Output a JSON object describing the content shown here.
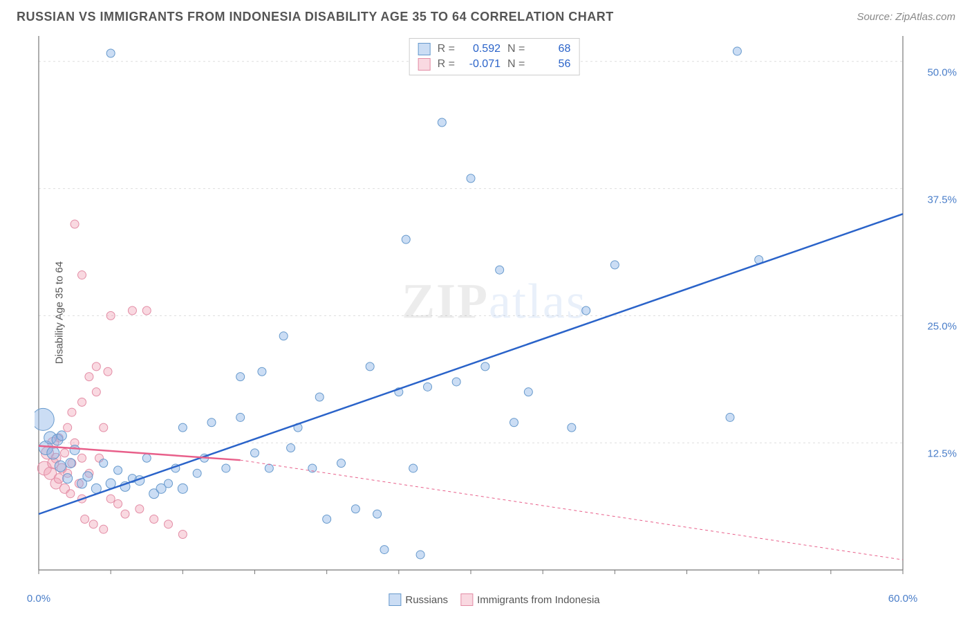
{
  "header": {
    "title": "RUSSIAN VS IMMIGRANTS FROM INDONESIA DISABILITY AGE 35 TO 64 CORRELATION CHART",
    "source": "Source: ZipAtlas.com"
  },
  "watermark": {
    "lead": "ZIP",
    "tail": "atlas"
  },
  "chart": {
    "type": "scatter",
    "ylabel": "Disability Age 35 to 64",
    "xlim": [
      0,
      60
    ],
    "ylim": [
      0,
      52.5
    ],
    "xticks": [
      0,
      60
    ],
    "xtick_labels": [
      "0.0%",
      "60.0%"
    ],
    "xticks_minor": [
      0,
      5,
      10,
      15,
      20,
      25,
      30,
      35,
      40,
      45,
      50,
      55,
      60
    ],
    "yticks": [
      12.5,
      25.0,
      37.5,
      50.0
    ],
    "ytick_labels": [
      "12.5%",
      "25.0%",
      "37.5%",
      "50.0%"
    ],
    "grid_color": "#dddddd",
    "axis_color": "#777777",
    "background_color": "#ffffff",
    "series": [
      {
        "name": "Russians",
        "marker_fill": "rgba(140,180,230,0.45)",
        "marker_stroke": "#6699cc",
        "line_color": "#2a63c9",
        "line_width": 2.5,
        "line_dash": "none",
        "r_stat": "0.592",
        "n_stat": "68",
        "trend": {
          "x1": 0,
          "y1": 5.5,
          "x2": 60,
          "y2": 35.0
        },
        "points": [
          {
            "x": 0.3,
            "y": 14.8,
            "r": 16
          },
          {
            "x": 0.5,
            "y": 12.0,
            "r": 10
          },
          {
            "x": 0.8,
            "y": 13.0,
            "r": 9
          },
          {
            "x": 1.0,
            "y": 11.5,
            "r": 9
          },
          {
            "x": 1.3,
            "y": 12.8,
            "r": 8
          },
          {
            "x": 1.5,
            "y": 10.2,
            "r": 8
          },
          {
            "x": 1.6,
            "y": 13.2,
            "r": 7
          },
          {
            "x": 2.0,
            "y": 9.0,
            "r": 7
          },
          {
            "x": 2.2,
            "y": 10.5,
            "r": 7
          },
          {
            "x": 2.5,
            "y": 11.8,
            "r": 7
          },
          {
            "x": 3.0,
            "y": 8.5,
            "r": 7
          },
          {
            "x": 3.4,
            "y": 9.2,
            "r": 7
          },
          {
            "x": 4.0,
            "y": 8.0,
            "r": 7
          },
          {
            "x": 4.5,
            "y": 10.5,
            "r": 6
          },
          {
            "x": 5.0,
            "y": 8.5,
            "r": 7
          },
          {
            "x": 5.0,
            "y": 50.8,
            "r": 6
          },
          {
            "x": 5.5,
            "y": 9.8,
            "r": 6
          },
          {
            "x": 6.0,
            "y": 8.2,
            "r": 7
          },
          {
            "x": 6.5,
            "y": 9.0,
            "r": 6
          },
          {
            "x": 7.0,
            "y": 8.8,
            "r": 7
          },
          {
            "x": 7.5,
            "y": 11.0,
            "r": 6
          },
          {
            "x": 8.0,
            "y": 7.5,
            "r": 7
          },
          {
            "x": 8.5,
            "y": 8.0,
            "r": 7
          },
          {
            "x": 9.0,
            "y": 8.5,
            "r": 6
          },
          {
            "x": 9.5,
            "y": 10.0,
            "r": 6
          },
          {
            "x": 10.0,
            "y": 8.0,
            "r": 7
          },
          {
            "x": 10.0,
            "y": 14.0,
            "r": 6
          },
          {
            "x": 11.0,
            "y": 9.5,
            "r": 6
          },
          {
            "x": 11.5,
            "y": 11.0,
            "r": 6
          },
          {
            "x": 12.0,
            "y": 14.5,
            "r": 6
          },
          {
            "x": 13.0,
            "y": 10.0,
            "r": 6
          },
          {
            "x": 14.0,
            "y": 15.0,
            "r": 6
          },
          {
            "x": 14.0,
            "y": 19.0,
            "r": 6
          },
          {
            "x": 15.0,
            "y": 11.5,
            "r": 6
          },
          {
            "x": 15.5,
            "y": 19.5,
            "r": 6
          },
          {
            "x": 16.0,
            "y": 10.0,
            "r": 6
          },
          {
            "x": 17.0,
            "y": 23.0,
            "r": 6
          },
          {
            "x": 17.5,
            "y": 12.0,
            "r": 6
          },
          {
            "x": 18.0,
            "y": 14.0,
            "r": 6
          },
          {
            "x": 19.0,
            "y": 10.0,
            "r": 6
          },
          {
            "x": 19.5,
            "y": 17.0,
            "r": 6
          },
          {
            "x": 20.0,
            "y": 5.0,
            "r": 6
          },
          {
            "x": 21.0,
            "y": 10.5,
            "r": 6
          },
          {
            "x": 22.0,
            "y": 6.0,
            "r": 6
          },
          {
            "x": 23.0,
            "y": 20.0,
            "r": 6
          },
          {
            "x": 23.5,
            "y": 5.5,
            "r": 6
          },
          {
            "x": 24.0,
            "y": 2.0,
            "r": 6
          },
          {
            "x": 25.0,
            "y": 17.5,
            "r": 6
          },
          {
            "x": 25.5,
            "y": 32.5,
            "r": 6
          },
          {
            "x": 26.0,
            "y": 10.0,
            "r": 6
          },
          {
            "x": 26.5,
            "y": 1.5,
            "r": 6
          },
          {
            "x": 27.0,
            "y": 18.0,
            "r": 6
          },
          {
            "x": 28.0,
            "y": 44.0,
            "r": 6
          },
          {
            "x": 29.0,
            "y": 18.5,
            "r": 6
          },
          {
            "x": 30.0,
            "y": 38.5,
            "r": 6
          },
          {
            "x": 31.0,
            "y": 20.0,
            "r": 6
          },
          {
            "x": 32.0,
            "y": 29.5,
            "r": 6
          },
          {
            "x": 33.0,
            "y": 14.5,
            "r": 6
          },
          {
            "x": 34.0,
            "y": 17.5,
            "r": 6
          },
          {
            "x": 37.0,
            "y": 14.0,
            "r": 6
          },
          {
            "x": 38.0,
            "y": 25.5,
            "r": 6
          },
          {
            "x": 40.0,
            "y": 30.0,
            "r": 6
          },
          {
            "x": 48.0,
            "y": 15.0,
            "r": 6
          },
          {
            "x": 48.5,
            "y": 51.0,
            "r": 6
          },
          {
            "x": 50.0,
            "y": 30.5,
            "r": 6
          }
        ]
      },
      {
        "name": "Immigrants from Indonesia",
        "marker_fill": "rgba(240,160,180,0.4)",
        "marker_stroke": "#e38ca5",
        "line_color": "#e85f8a",
        "line_width": 2.5,
        "line_dash": "none",
        "dash_extension": "4 4",
        "r_stat": "-0.071",
        "n_stat": "56",
        "trend": {
          "x1": 0,
          "y1": 12.2,
          "x2": 14,
          "y2": 10.8
        },
        "trend_ext": {
          "x1": 14,
          "y1": 10.8,
          "x2": 60,
          "y2": 1.0
        },
        "points": [
          {
            "x": 0.4,
            "y": 10.0,
            "r": 10
          },
          {
            "x": 0.6,
            "y": 11.5,
            "r": 9
          },
          {
            "x": 0.8,
            "y": 9.5,
            "r": 9
          },
          {
            "x": 1.0,
            "y": 10.5,
            "r": 8
          },
          {
            "x": 1.0,
            "y": 12.5,
            "r": 8
          },
          {
            "x": 1.2,
            "y": 8.5,
            "r": 8
          },
          {
            "x": 1.2,
            "y": 11.0,
            "r": 7
          },
          {
            "x": 1.4,
            "y": 9.0,
            "r": 7
          },
          {
            "x": 1.4,
            "y": 13.0,
            "r": 6
          },
          {
            "x": 1.6,
            "y": 10.0,
            "r": 7
          },
          {
            "x": 1.8,
            "y": 8.0,
            "r": 7
          },
          {
            "x": 1.8,
            "y": 11.5,
            "r": 6
          },
          {
            "x": 2.0,
            "y": 9.5,
            "r": 6
          },
          {
            "x": 2.0,
            "y": 14.0,
            "r": 6
          },
          {
            "x": 2.2,
            "y": 7.5,
            "r": 6
          },
          {
            "x": 2.3,
            "y": 10.5,
            "r": 6
          },
          {
            "x": 2.3,
            "y": 15.5,
            "r": 6
          },
          {
            "x": 2.5,
            "y": 12.5,
            "r": 6
          },
          {
            "x": 2.5,
            "y": 34.0,
            "r": 6
          },
          {
            "x": 2.8,
            "y": 8.5,
            "r": 6
          },
          {
            "x": 3.0,
            "y": 7.0,
            "r": 6
          },
          {
            "x": 3.0,
            "y": 11.0,
            "r": 6
          },
          {
            "x": 3.0,
            "y": 16.5,
            "r": 6
          },
          {
            "x": 3.0,
            "y": 29.0,
            "r": 6
          },
          {
            "x": 3.2,
            "y": 5.0,
            "r": 6
          },
          {
            "x": 3.5,
            "y": 19.0,
            "r": 6
          },
          {
            "x": 3.5,
            "y": 9.5,
            "r": 6
          },
          {
            "x": 3.8,
            "y": 4.5,
            "r": 6
          },
          {
            "x": 4.0,
            "y": 17.5,
            "r": 6
          },
          {
            "x": 4.0,
            "y": 20.0,
            "r": 6
          },
          {
            "x": 4.2,
            "y": 11.0,
            "r": 6
          },
          {
            "x": 4.5,
            "y": 14.0,
            "r": 6
          },
          {
            "x": 4.5,
            "y": 4.0,
            "r": 6
          },
          {
            "x": 4.8,
            "y": 19.5,
            "r": 6
          },
          {
            "x": 5.0,
            "y": 7.0,
            "r": 6
          },
          {
            "x": 5.0,
            "y": 25.0,
            "r": 6
          },
          {
            "x": 5.5,
            "y": 6.5,
            "r": 6
          },
          {
            "x": 6.0,
            "y": 5.5,
            "r": 6
          },
          {
            "x": 6.5,
            "y": 25.5,
            "r": 6
          },
          {
            "x": 7.0,
            "y": 6.0,
            "r": 6
          },
          {
            "x": 7.5,
            "y": 25.5,
            "r": 6
          },
          {
            "x": 8.0,
            "y": 5.0,
            "r": 6
          },
          {
            "x": 9.0,
            "y": 4.5,
            "r": 6
          },
          {
            "x": 10.0,
            "y": 3.5,
            "r": 6
          }
        ]
      }
    ]
  },
  "legend_top": {
    "r_label": "R =",
    "n_label": "N ="
  },
  "legend_bottom": {
    "items": [
      "Russians",
      "Immigrants from Indonesia"
    ]
  }
}
